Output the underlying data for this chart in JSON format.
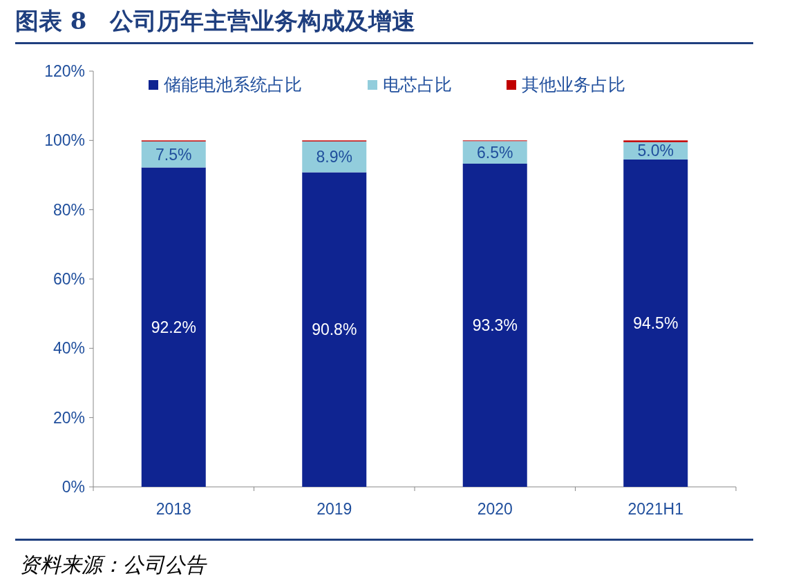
{
  "chart_data": {
    "type": "bar",
    "title": "图表 8　公司历年主营业务构成及增速",
    "stacked": true,
    "legend": "top",
    "categories": [
      "2018",
      "2019",
      "2020",
      "2021H1"
    ],
    "series": [
      {
        "name": "储能电池系统占比",
        "color": "#0f2491",
        "values": [
          92.2,
          90.8,
          93.3,
          94.5
        ],
        "value_labels": [
          "92.2%",
          "90.8%",
          "93.3%",
          "94.5%"
        ]
      },
      {
        "name": "电芯占比",
        "color": "#92cddc",
        "values": [
          7.5,
          8.9,
          6.5,
          5.0
        ],
        "value_labels": [
          "7.5%",
          "8.9%",
          "6.5%",
          "5.0%"
        ]
      },
      {
        "name": "其他业务占比",
        "color": "#c00000",
        "values": [
          0.3,
          0.3,
          0.2,
          0.5
        ]
      }
    ],
    "ylim": [
      0,
      120
    ],
    "yticks": [
      {
        "value": 0,
        "label": "0%"
      },
      {
        "value": 20,
        "label": "20%"
      },
      {
        "value": 40,
        "label": "40%"
      },
      {
        "value": 60,
        "label": "60%"
      },
      {
        "value": 80,
        "label": "80%"
      },
      {
        "value": 100,
        "label": "100%"
      },
      {
        "value": 120,
        "label": "120%"
      }
    ],
    "annotations": [
      "资料来源：公司公告"
    ]
  }
}
